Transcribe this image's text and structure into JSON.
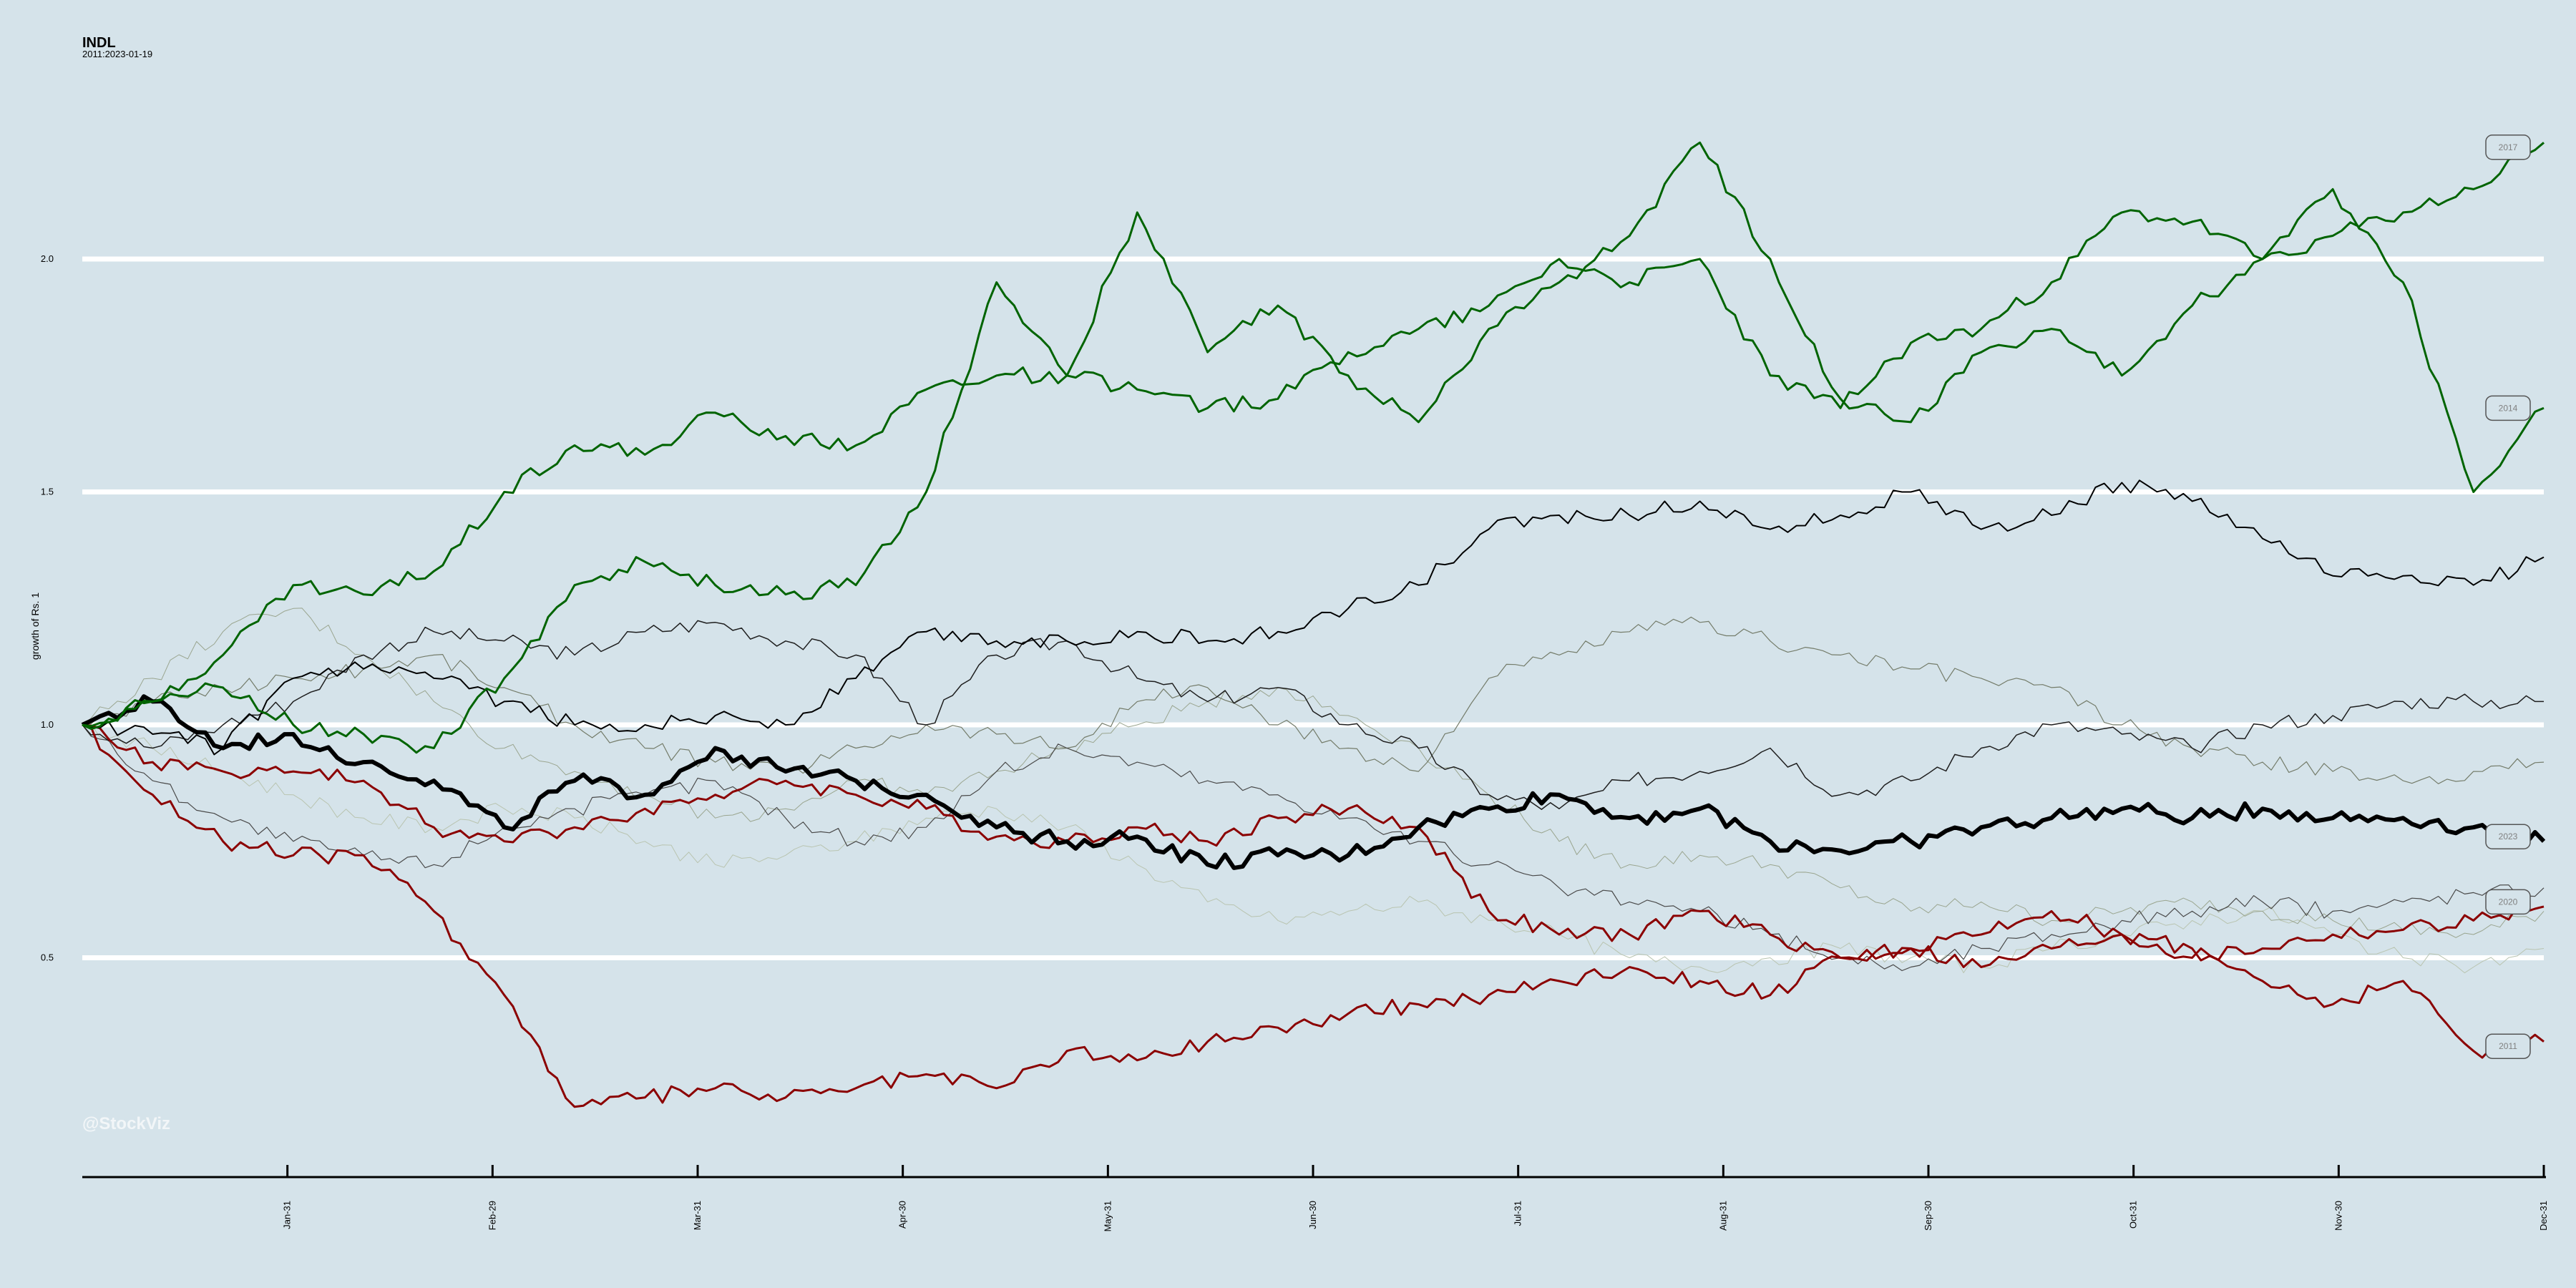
{
  "chart_data": {
    "type": "line",
    "title": "INDL",
    "subtitle": "2011:2023-01-19",
    "ylabel": "growth of Rs. 1",
    "watermark": "@StockViz",
    "ylim": [
      0.0,
      2.5
    ],
    "yticks": [
      "0.5",
      "1.0",
      "1.5",
      "2.0"
    ],
    "x_ticks": [
      "Jan-31",
      "Feb-29",
      "Mar-31",
      "Apr-30",
      "May-31",
      "Jun-30",
      "Jul-31",
      "Aug-31",
      "Sep-30",
      "Oct-31",
      "Nov-30",
      "Dec-31"
    ],
    "grid": true,
    "series": [
      {
        "name": "2017",
        "color": "#006400",
        "weight": 3,
        "values": [
          1.0,
          1.05,
          1.15,
          1.3,
          1.28,
          1.33,
          1.5,
          1.6,
          1.58,
          1.67,
          1.62,
          1.6,
          1.72,
          1.75,
          1.75,
          1.72,
          1.68,
          1.7,
          1.8,
          1.85,
          1.9,
          2.0,
          1.95,
          2.0,
          1.75,
          1.68,
          1.82,
          1.85,
          1.95,
          2.1,
          2.08,
          2.0,
          2.05,
          2.1,
          2.15,
          2.25
        ]
      },
      {
        "name": "2014",
        "color": "#006400",
        "weight": 3,
        "values": [
          1.0,
          1.05,
          1.08,
          1.0,
          0.98,
          0.95,
          1.1,
          1.3,
          1.35,
          1.3,
          1.28,
          1.3,
          1.5,
          1.95,
          1.75,
          2.1,
          1.8,
          1.9,
          1.75,
          1.65,
          1.85,
          1.95,
          2.05,
          2.25,
          2.0,
          1.7,
          1.65,
          1.8,
          1.85,
          1.75,
          1.9,
          2.0,
          2.15,
          1.95,
          1.5,
          1.68
        ]
      },
      {
        "name": "2012",
        "color": "#000000",
        "weight": 2,
        "values": [
          1.0,
          0.98,
          0.95,
          1.1,
          1.12,
          1.1,
          1.05,
          1.0,
          1.0,
          1.02,
          1.0,
          1.1,
          1.2,
          1.18,
          1.18,
          1.2,
          1.18,
          1.2,
          1.25,
          1.3,
          1.42,
          1.45,
          1.45,
          1.48,
          1.42,
          1.45,
          1.5,
          1.42,
          1.45,
          1.52,
          1.48,
          1.4,
          1.32,
          1.32,
          1.3,
          1.36
        ]
      },
      {
        "name": "2023",
        "color": "#000000",
        "weight": 6,
        "values": [
          1.0,
          1.05,
          0.95,
          0.98,
          0.92,
          0.88,
          0.78,
          0.88,
          0.85,
          0.95,
          0.9,
          0.88,
          0.85,
          0.78,
          0.75,
          0.76,
          0.7,
          0.72,
          0.72,
          0.78,
          0.82,
          0.85,
          0.8,
          0.82,
          0.75,
          0.73,
          0.75,
          0.78,
          0.8,
          0.82,
          0.8,
          0.82,
          0.8,
          0.8,
          0.78,
          0.75
        ]
      },
      {
        "name": "2020",
        "color": "#8b0000",
        "weight": 3,
        "values": [
          1.0,
          0.92,
          0.9,
          0.9,
          0.88,
          0.78,
          0.75,
          0.78,
          0.82,
          0.85,
          0.88,
          0.85,
          0.82,
          0.76,
          0.75,
          0.78,
          0.75,
          0.8,
          0.82,
          0.78,
          0.6,
          0.55,
          0.55,
          0.6,
          0.55,
          0.5,
          0.52,
          0.48,
          0.52,
          0.55,
          0.5,
          0.52,
          0.55,
          0.56,
          0.58,
          0.61
        ]
      },
      {
        "name": "2011",
        "color": "#8b0000",
        "weight": 3,
        "values": [
          1.0,
          0.85,
          0.75,
          0.72,
          0.72,
          0.6,
          0.42,
          0.18,
          0.2,
          0.22,
          0.2,
          0.22,
          0.25,
          0.22,
          0.3,
          0.28,
          0.32,
          0.35,
          0.38,
          0.4,
          0.42,
          0.45,
          0.48,
          0.45,
          0.42,
          0.5,
          0.52,
          0.55,
          0.6,
          0.55,
          0.52,
          0.45,
          0.4,
          0.45,
          0.3,
          0.32
        ]
      },
      {
        "name": "",
        "color": "#1e1e1e",
        "weight": 1.5,
        "values": [
          1.0,
          0.95,
          1.0,
          1.05,
          1.15,
          1.2,
          1.18,
          1.15,
          1.2,
          1.22,
          1.18,
          1.15,
          1.0,
          1.15,
          1.18,
          1.1,
          1.05,
          1.08,
          1.0,
          0.95,
          0.85,
          0.82,
          0.88,
          0.9,
          0.95,
          0.85,
          0.88,
          0.95,
          1.0,
          0.98,
          0.95,
          1.0,
          1.02,
          1.05,
          1.05,
          1.05
        ]
      },
      {
        "name": "",
        "color": "#4a4a4a",
        "weight": 1.2,
        "values": [
          1.0,
          0.88,
          0.8,
          0.75,
          0.72,
          0.7,
          0.78,
          0.82,
          0.85,
          0.88,
          0.8,
          0.75,
          0.78,
          0.9,
          0.95,
          0.92,
          0.88,
          0.85,
          0.8,
          0.75,
          0.7,
          0.65,
          0.62,
          0.6,
          0.55,
          0.5,
          0.48,
          0.52,
          0.55,
          0.58,
          0.6,
          0.62,
          0.6,
          0.62,
          0.64,
          0.65
        ]
      },
      {
        "name": "",
        "color": "#747c6a",
        "weight": 1.2,
        "values": [
          1.0,
          1.05,
          1.08,
          1.1,
          1.12,
          1.15,
          1.08,
          1.0,
          0.95,
          0.92,
          0.9,
          0.95,
          1.0,
          0.98,
          0.95,
          1.05,
          1.08,
          1.0,
          0.95,
          0.9,
          1.1,
          1.15,
          1.2,
          1.22,
          1.18,
          1.15,
          1.12,
          1.1,
          1.08,
          1.0,
          0.95,
          0.92,
          0.9,
          0.88,
          0.9,
          0.92
        ]
      },
      {
        "name": "",
        "color": "#9aa58f",
        "weight": 1,
        "values": [
          1.0,
          1.1,
          1.2,
          1.25,
          1.15,
          1.05,
          0.95,
          0.9,
          0.85,
          0.8,
          0.82,
          0.88,
          0.85,
          0.9,
          0.95,
          1.0,
          1.05,
          1.08,
          1.02,
          0.95,
          0.85,
          0.75,
          0.7,
          0.72,
          0.7,
          0.65,
          0.6,
          0.62,
          0.58,
          0.6,
          0.62,
          0.6,
          0.58,
          0.56,
          0.55,
          0.6
        ]
      },
      {
        "name": "",
        "color": "#b9c4b0",
        "weight": 1,
        "values": [
          1.0,
          0.95,
          0.9,
          0.85,
          0.8,
          0.78,
          0.82,
          0.8,
          0.75,
          0.7,
          0.72,
          0.75,
          0.8,
          0.82,
          0.78,
          0.7,
          0.62,
          0.58,
          0.6,
          0.62,
          0.58,
          0.55,
          0.5,
          0.48,
          0.5,
          0.52,
          0.5,
          0.48,
          0.52,
          0.55,
          0.58,
          0.6,
          0.55,
          0.5,
          0.48,
          0.52
        ]
      }
    ],
    "end_labels": [
      {
        "text": "2017",
        "y": 2.24
      },
      {
        "text": "2014",
        "y": 1.68
      },
      {
        "text": "2023",
        "y": 0.76
      },
      {
        "text": "2020",
        "y": 0.62
      },
      {
        "text": "2011",
        "y": 0.31
      }
    ]
  }
}
